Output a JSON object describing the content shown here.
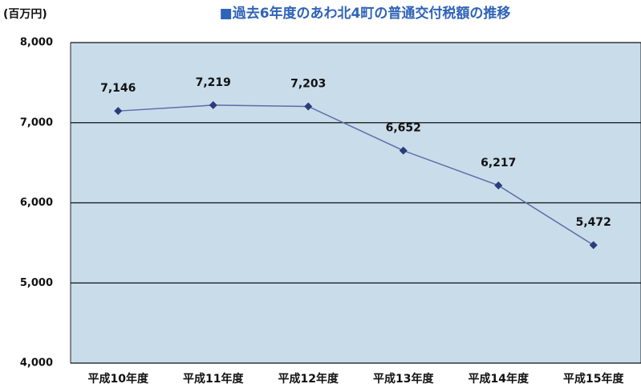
{
  "chart_data": {
    "type": "line",
    "title": "■過去6年度のあわ北4町の普通交付税額の推移",
    "y_label": "(百万円)",
    "categories": [
      "平成10年度",
      "平成11年度",
      "平成12年度",
      "平成13年度",
      "平成14年度",
      "平成15年度"
    ],
    "series": [
      {
        "name": "普通交付税額",
        "color": "#5a6ea8",
        "marker_color": "#2a3c7c",
        "values": [
          7146,
          7219,
          7203,
          6652,
          6217,
          5472
        ],
        "value_labels": [
          "7,146",
          "7,219",
          "7,203",
          "6,652",
          "6,217",
          "5,472"
        ]
      }
    ],
    "ylim": [
      4000,
      8000
    ],
    "yticks": [
      {
        "value": 4000,
        "label": "4,000"
      },
      {
        "value": 5000,
        "label": "5,000"
      },
      {
        "value": 6000,
        "label": "6,000"
      },
      {
        "value": 7000,
        "label": "7,000"
      },
      {
        "value": 8000,
        "label": "8,000"
      }
    ],
    "grid": true,
    "plot_background": "#c9dcea"
  }
}
